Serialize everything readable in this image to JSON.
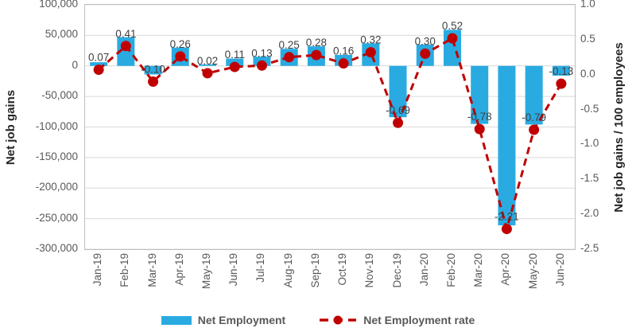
{
  "chart_data": {
    "type": "combo-bar-line",
    "categories": [
      "Jan-19",
      "Feb-19",
      "Mar-19",
      "Apr-19",
      "May-19",
      "Jun-19",
      "Jul-19",
      "Aug-19",
      "Sep-19",
      "Oct-19",
      "Nov-19",
      "Dec-19",
      "Jan-20",
      "Feb-20",
      "Mar-20",
      "Apr-20",
      "May-20",
      "Jun-20"
    ],
    "series": [
      {
        "name": "Net Employment",
        "type": "bar",
        "axis": "left",
        "values": [
          6000,
          47000,
          -14000,
          30000,
          2500,
          12000,
          15000,
          28000,
          32000,
          18000,
          37000,
          -84000,
          35000,
          59000,
          -95000,
          -261000,
          -96000,
          -16000
        ]
      },
      {
        "name": "Net Employment rate",
        "type": "line-dashed-with-markers",
        "axis": "right",
        "values": [
          0.07,
          0.41,
          -0.1,
          0.26,
          0.02,
          0.11,
          0.13,
          0.25,
          0.28,
          0.16,
          0.32,
          -0.69,
          0.3,
          0.52,
          -0.78,
          -2.21,
          -0.79,
          -0.13
        ],
        "labels": [
          "0.07",
          "0.41",
          "-0.10",
          "0.26",
          "0.02",
          "0.11",
          "0.13",
          "0.25",
          "0.28",
          "0.16",
          "0.32",
          "-0.69",
          "0.30",
          "0.52",
          "-0.78",
          "-2.21",
          "-0.79",
          "-0.13"
        ]
      }
    ],
    "left_axis": {
      "title": "Net job gains",
      "min": -300000,
      "max": 100000,
      "ticks": [
        {
          "label": "100,000",
          "value": 100000
        },
        {
          "label": "50,000",
          "value": 50000
        },
        {
          "label": "0",
          "value": 0
        },
        {
          "label": "-50,000",
          "value": -50000
        },
        {
          "label": "-100,000",
          "value": -100000
        },
        {
          "label": "-150,000",
          "value": -150000
        },
        {
          "label": "-200,000",
          "value": -200000
        },
        {
          "label": "-250,000",
          "value": -250000
        },
        {
          "label": "-300,000",
          "value": -300000
        }
      ]
    },
    "right_axis": {
      "title": "Net job gains / 100 employees",
      "min": -2.5,
      "max": 1.0,
      "ticks": [
        {
          "label": "1.0",
          "value": 1.0
        },
        {
          "label": "0.5",
          "value": 0.5
        },
        {
          "label": "0.0",
          "value": 0.0
        },
        {
          "label": "-0.5",
          "value": -0.5
        },
        {
          "label": "-1.0",
          "value": -1.0
        },
        {
          "label": "-1.5",
          "value": -1.5
        },
        {
          "label": "-2.0",
          "value": -2.0
        },
        {
          "label": "-2.5",
          "value": -2.5
        }
      ]
    },
    "grid": true,
    "legend_position": "bottom"
  },
  "colors": {
    "bar": "#29ABE2",
    "line": "#C00000",
    "grid": "#D9D9D9",
    "border": "#BFBFBF",
    "tick_text": "#595959",
    "data_label_text": "#404040"
  }
}
